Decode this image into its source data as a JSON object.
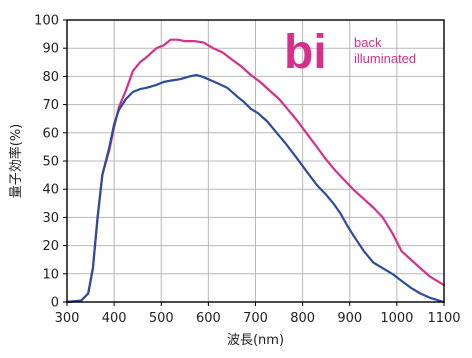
{
  "chart_data": {
    "type": "line",
    "xlabel": "波長(nm)",
    "ylabel": "量子効率(%)",
    "xlim": [
      300,
      1100
    ],
    "ylim": [
      0,
      100
    ],
    "xticks": [
      300,
      400,
      500,
      600,
      700,
      800,
      900,
      1000,
      1100
    ],
    "yticks": [
      0,
      10,
      20,
      30,
      40,
      50,
      60,
      70,
      80,
      90,
      100
    ],
    "grid": true,
    "series": [
      {
        "color": "#d62f8c",
        "x": [
          300,
          330,
          345,
          355,
          365,
          375,
          390,
          400,
          410,
          425,
          440,
          455,
          470,
          490,
          505,
          520,
          535,
          550,
          570,
          590,
          610,
          630,
          650,
          670,
          690,
          710,
          730,
          750,
          770,
          790,
          810,
          830,
          850,
          870,
          890,
          910,
          930,
          950,
          970,
          990,
          1010,
          1030,
          1050,
          1070,
          1100
        ],
        "y": [
          0,
          0.5,
          3,
          12,
          30,
          45,
          54,
          62,
          69,
          75,
          82,
          85,
          87,
          90,
          91,
          93,
          93,
          92.5,
          92.5,
          92,
          90,
          88.5,
          86,
          83.5,
          80.5,
          78,
          75,
          72,
          68,
          64,
          59.5,
          55,
          50.5,
          46.5,
          43,
          39.5,
          36.5,
          33.5,
          30,
          24.5,
          18,
          15,
          12,
          9,
          6
        ]
      },
      {
        "color": "#2b4e9b",
        "x": [
          300,
          330,
          345,
          355,
          365,
          375,
          390,
          400,
          410,
          425,
          440,
          455,
          470,
          490,
          505,
          520,
          540,
          560,
          575,
          585,
          600,
          620,
          640,
          660,
          675,
          690,
          705,
          725,
          745,
          765,
          790,
          810,
          830,
          850,
          865,
          880,
          895,
          910,
          930,
          950,
          970,
          990,
          1010,
          1030,
          1050,
          1070,
          1100
        ],
        "y": [
          0,
          0.5,
          3,
          12,
          30,
          45,
          55,
          63,
          68,
          72,
          74.5,
          75.5,
          76,
          77,
          78,
          78.5,
          79,
          80,
          80.5,
          80,
          79,
          77.5,
          76,
          73,
          71,
          68.5,
          67,
          64,
          60,
          56,
          50.5,
          46,
          41.5,
          38,
          35,
          31.5,
          27,
          23,
          18,
          14,
          12,
          10,
          7.5,
          5,
          3,
          1.5,
          0
        ]
      }
    ]
  },
  "logo": {
    "mark": "bi",
    "line1": "back",
    "line2": "illuminated",
    "color": "#d62f8c"
  }
}
